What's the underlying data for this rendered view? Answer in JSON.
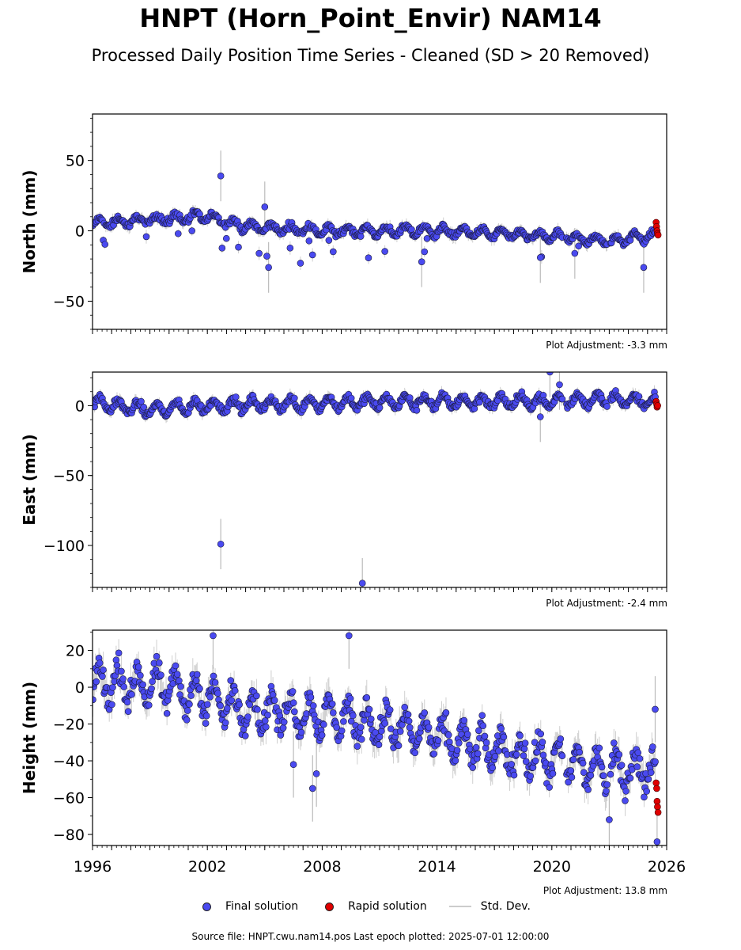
{
  "title": "HNPT (Horn_Point_Envir) NAM14",
  "subtitle": "Processed Daily Position Time Series - Cleaned (SD > 20 Removed)",
  "legend": {
    "final": "Final solution",
    "rapid": "Rapid solution",
    "std": "Std. Dev."
  },
  "source": "Source file: HNPT.cwu.nam14.pos  Last epoch plotted: 2025-07-01 12:00:00",
  "colors": {
    "final": "#4a4af0",
    "rapid": "#e00000",
    "std": "#bbbbbb"
  },
  "chart_data": [
    {
      "type": "scatter",
      "ylabel": "North (mm)",
      "ylim": [
        -70,
        83
      ],
      "xlim": [
        1996,
        2026
      ],
      "yticks": [
        50,
        0,
        -50
      ],
      "adjustment": "Plot Adjustment: -3.3 mm",
      "trend": [
        [
          1996,
          5
        ],
        [
          1999,
          8
        ],
        [
          2002,
          10
        ],
        [
          2004,
          3
        ],
        [
          2008,
          0
        ],
        [
          2014,
          0
        ],
        [
          2020,
          -4
        ],
        [
          2023,
          -7
        ],
        [
          2025.5,
          -3
        ]
      ],
      "seasonal_amp": 3,
      "outliers": [
        [
          2002.7,
          39
        ],
        [
          2005.0,
          17
        ],
        [
          2005.2,
          -26
        ],
        [
          2013.2,
          -22
        ],
        [
          2019.4,
          -19
        ],
        [
          2021.2,
          -16
        ],
        [
          2024.8,
          -26
        ]
      ],
      "rapid": [
        [
          2025.45,
          6
        ],
        [
          2025.47,
          3
        ],
        [
          2025.5,
          0
        ],
        [
          2025.52,
          -2
        ],
        [
          2025.55,
          -3
        ]
      ]
    },
    {
      "type": "scatter",
      "ylabel": "East (mm)",
      "ylim": [
        -130,
        24
      ],
      "xlim": [
        1996,
        2026
      ],
      "yticks": [
        0,
        -50,
        -100
      ],
      "adjustment": "Plot Adjustment: -2.4 mm",
      "trend": [
        [
          1996,
          2
        ],
        [
          1999,
          -3
        ],
        [
          2002,
          0
        ],
        [
          2008,
          2
        ],
        [
          2014,
          3
        ],
        [
          2020,
          3
        ],
        [
          2023,
          5
        ],
        [
          2025.5,
          2
        ]
      ],
      "seasonal_amp": 4,
      "outliers": [
        [
          2002.7,
          -99
        ],
        [
          2010.1,
          -127
        ],
        [
          2019.9,
          24
        ],
        [
          2020.4,
          15
        ],
        [
          2019.4,
          -8
        ]
      ],
      "rapid": [
        [
          2025.45,
          3
        ],
        [
          2025.48,
          1
        ],
        [
          2025.5,
          -1
        ],
        [
          2025.53,
          0
        ]
      ]
    },
    {
      "type": "scatter",
      "ylabel": "Height (mm)",
      "ylim": [
        -86,
        31
      ],
      "xlim": [
        1996,
        2026
      ],
      "xticks": [
        1996,
        2002,
        2008,
        2014,
        2020,
        2026
      ],
      "yticks": [
        20,
        0,
        -20,
        -40,
        -60,
        -80
      ],
      "adjustment": "Plot Adjustment: 13.8 mm",
      "trend": [
        [
          1996,
          3
        ],
        [
          2000,
          0
        ],
        [
          2004,
          -12
        ],
        [
          2008,
          -15
        ],
        [
          2012,
          -22
        ],
        [
          2016,
          -32
        ],
        [
          2020,
          -40
        ],
        [
          2023,
          -45
        ],
        [
          2025.5,
          -45
        ]
      ],
      "seasonal_amp": 9,
      "outliers": [
        [
          2002.3,
          28
        ],
        [
          2009.4,
          28
        ],
        [
          2006.5,
          -42
        ],
        [
          2007.5,
          -55
        ],
        [
          2007.7,
          -47
        ],
        [
          2023.0,
          -72
        ],
        [
          2025.5,
          -84
        ],
        [
          2025.4,
          -12
        ]
      ],
      "rapid": [
        [
          2025.45,
          -52
        ],
        [
          2025.48,
          -55
        ],
        [
          2025.5,
          -62
        ],
        [
          2025.52,
          -65
        ],
        [
          2025.55,
          -68
        ]
      ]
    }
  ]
}
